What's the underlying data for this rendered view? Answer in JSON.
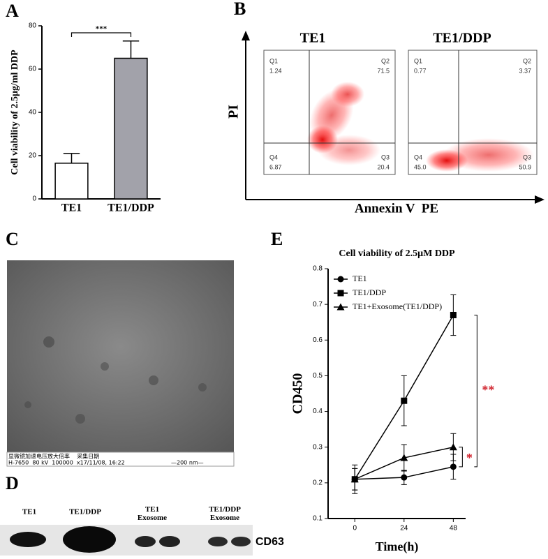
{
  "chart_data": [
    {
      "type": "bar",
      "panel": "A",
      "y_label": "Cell viability of 2.5μg/ml DDP",
      "categories": [
        "TE1",
        "TE1/DDP"
      ],
      "values": [
        16.5,
        65
      ],
      "errors": [
        4.5,
        8
      ],
      "colors": [
        "#ffffff",
        "#a2a2aa"
      ],
      "ylim": [
        0,
        80
      ],
      "yticks": [
        0,
        20,
        40,
        60,
        80
      ],
      "significance": "***"
    },
    {
      "type": "line",
      "panel": "E",
      "title": "Cell viability of 2.5μM DDP",
      "x_label": "Time(h)",
      "y_label": "CD450",
      "x": [
        0,
        24,
        48
      ],
      "xlim": [
        -13,
        54
      ],
      "xticks": [
        0,
        24,
        48
      ],
      "ylim": [
        0.1,
        0.8
      ],
      "yticks": [
        0.1,
        0.2,
        0.3,
        0.4,
        0.5,
        0.6,
        0.7,
        0.8
      ],
      "series": [
        {
          "name": "TE1",
          "marker": "circle",
          "color": "#000000",
          "values": [
            0.21,
            0.215,
            0.245
          ],
          "errors": [
            0.04,
            0.02,
            0.035
          ]
        },
        {
          "name": "TE1/DDP",
          "marker": "square",
          "color": "#000000",
          "values": [
            0.21,
            0.43,
            0.67
          ],
          "errors": [
            0.03,
            0.07,
            0.057
          ]
        },
        {
          "name": "TE1+Exosome(TE1/DDP)",
          "marker": "triangle",
          "color": "#000000",
          "values": [
            0.21,
            0.27,
            0.3
          ],
          "errors": [
            0.03,
            0.037,
            0.038
          ]
        }
      ],
      "annotations": [
        "**",
        "*"
      ],
      "annotation_color": "#d0202a"
    }
  ],
  "flow": {
    "panel": "B",
    "y_label": "PI",
    "x_label": "Annexin V  PE",
    "plots": [
      {
        "title": "TE1",
        "quadrants": [
          {
            "name": "Q1",
            "value": "1.24"
          },
          {
            "name": "Q2",
            "value": "71.5"
          },
          {
            "name": "Q4",
            "value": "6.87"
          },
          {
            "name": "Q3",
            "value": "20.4"
          }
        ]
      },
      {
        "title": "TE1/DDP",
        "quadrants": [
          {
            "name": "Q1",
            "value": "0.77"
          },
          {
            "name": "Q2",
            "value": "3.37"
          },
          {
            "name": "Q4",
            "value": "45.0"
          },
          {
            "name": "Q3",
            "value": "50.9"
          }
        ]
      }
    ]
  },
  "micrograph": {
    "panel": "C",
    "caption": [
      "显微镜加速电压放大倍率    采集日期",
      "H-7650  80 kV  100000  x17/11/08, 16:22",
      "—200 nm—"
    ]
  },
  "blot": {
    "panel": "D",
    "lanes": [
      "TE1",
      "TE1/DDP",
      "TE1 Exosome",
      "TE1/DDP Exosome"
    ],
    "marker": "CD63"
  }
}
